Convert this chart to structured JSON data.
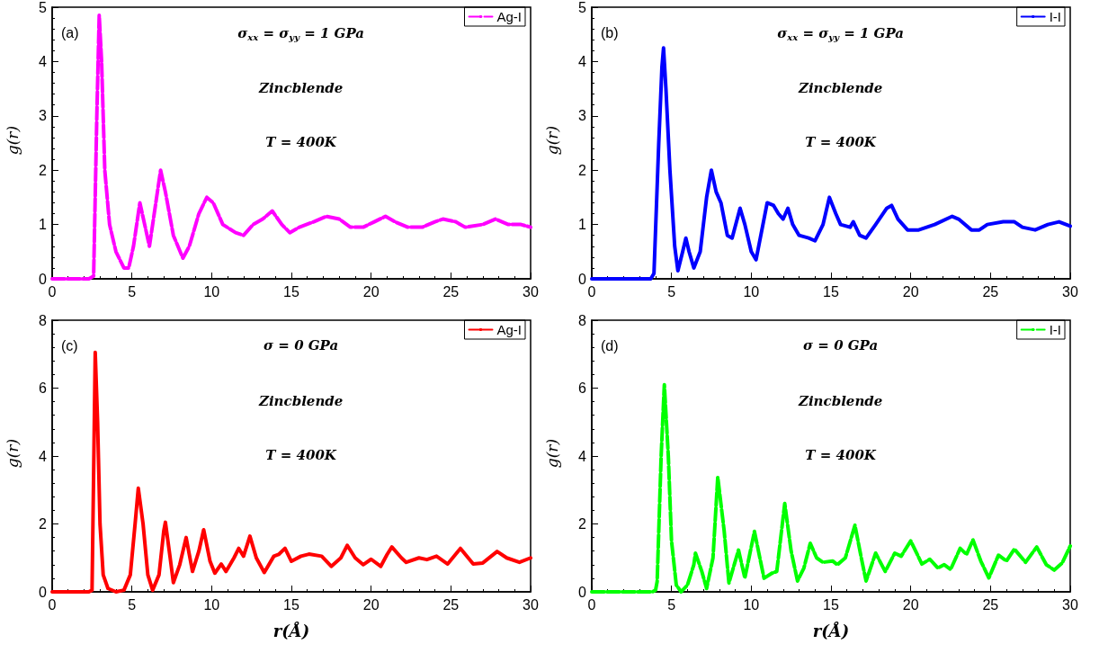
{
  "chart_data": [
    {
      "type": "line",
      "ylabel": "g(r)",
      "legend": "top right",
      "line_style": "dashed",
      "xlim": [
        0,
        30
      ],
      "xticks": [
        0,
        5,
        10,
        15,
        20,
        25,
        30
      ],
      "ylim": [
        0,
        5
      ],
      "yticks": [
        0,
        1,
        2,
        3,
        4,
        5
      ],
      "annotations": [
        "(a)",
        "σ$_{xx}$ = σ$_{yy}$ = 1 GPa",
        "Zincblende",
        "T = 400K"
      ],
      "series": [
        {
          "name": "Ag-I",
          "color": "#ff00ff",
          "x": [
            0,
            2.3,
            2.6,
            2.8,
            2.95,
            3.1,
            3.3,
            3.6,
            4.0,
            4.5,
            4.8,
            5.1,
            5.5,
            5.8,
            6.1,
            6.5,
            6.8,
            7.1,
            7.6,
            8.2,
            8.6,
            9.2,
            9.7,
            10.1,
            10.7,
            11.5,
            12.0,
            12.6,
            13.2,
            13.8,
            14.4,
            14.9,
            15.5,
            16.4,
            17.2,
            18.0,
            18.7,
            19.5,
            20.2,
            20.9,
            21.5,
            22.3,
            23.2,
            24.0,
            24.5,
            25.3,
            25.9,
            27.0,
            27.8,
            28.6,
            29.4,
            30
          ],
          "values": [
            0,
            0,
            0.05,
            3.0,
            4.85,
            4.0,
            2.0,
            1.0,
            0.5,
            0.2,
            0.2,
            0.6,
            1.4,
            1.0,
            0.6,
            1.4,
            2.0,
            1.6,
            0.8,
            0.38,
            0.6,
            1.2,
            1.5,
            1.4,
            1.0,
            0.85,
            0.8,
            1.0,
            1.1,
            1.25,
            1.0,
            0.85,
            0.95,
            1.05,
            1.15,
            1.1,
            0.95,
            0.95,
            1.05,
            1.15,
            1.05,
            0.95,
            0.95,
            1.05,
            1.1,
            1.05,
            0.95,
            1.0,
            1.1,
            1.0,
            1.0,
            0.95
          ]
        }
      ]
    },
    {
      "type": "line",
      "ylabel": "g(r)",
      "legend": "top right",
      "line_style": "solid",
      "xlim": [
        0,
        30
      ],
      "xticks": [
        0,
        5,
        10,
        15,
        20,
        25,
        30
      ],
      "ylim": [
        0,
        5
      ],
      "yticks": [
        0,
        1,
        2,
        3,
        4,
        5
      ],
      "annotations": [
        "(b)",
        "σ$_{xx}$ = σ$_{yy}$ = 1 GPa",
        "Zincblende",
        "T = 400K"
      ],
      "series": [
        {
          "name": "I-I",
          "color": "#0000ff",
          "x": [
            0,
            3.7,
            3.9,
            4.2,
            4.4,
            4.5,
            4.65,
            4.9,
            5.2,
            5.4,
            5.7,
            5.9,
            6.1,
            6.4,
            6.8,
            7.2,
            7.5,
            7.8,
            8.1,
            8.5,
            8.8,
            9.3,
            9.6,
            10.0,
            10.3,
            10.6,
            11.0,
            11.4,
            11.7,
            12.0,
            12.3,
            12.6,
            13.0,
            13.6,
            14.0,
            14.5,
            14.9,
            15.3,
            15.6,
            16.2,
            16.4,
            16.8,
            17.2,
            17.8,
            18.5,
            18.8,
            19.2,
            19.8,
            20.5,
            21.5,
            22.6,
            23.0,
            23.8,
            24.3,
            24.8,
            25.8,
            26.5,
            27.0,
            27.8,
            28.6,
            29.3,
            30
          ],
          "values": [
            0,
            0,
            0.1,
            2.5,
            3.9,
            4.25,
            3.5,
            2.0,
            0.6,
            0.15,
            0.5,
            0.75,
            0.5,
            0.2,
            0.5,
            1.5,
            2.0,
            1.6,
            1.4,
            0.8,
            0.75,
            1.3,
            1.0,
            0.5,
            0.35,
            0.8,
            1.4,
            1.35,
            1.2,
            1.1,
            1.3,
            1.0,
            0.8,
            0.75,
            0.7,
            1.0,
            1.5,
            1.2,
            1.0,
            0.95,
            1.05,
            0.8,
            0.75,
            1.0,
            1.3,
            1.35,
            1.1,
            0.9,
            0.9,
            1.0,
            1.15,
            1.1,
            0.9,
            0.9,
            1.0,
            1.05,
            1.05,
            0.95,
            0.9,
            1.0,
            1.05,
            0.97
          ]
        }
      ]
    },
    {
      "type": "line",
      "xlabel": "r(Å)",
      "ylabel": "g(r)",
      "legend": "top right",
      "line_style": "solid",
      "xlim": [
        0,
        30
      ],
      "xticks": [
        0,
        5,
        10,
        15,
        20,
        25,
        30
      ],
      "ylim": [
        0,
        8
      ],
      "yticks": [
        0,
        2,
        4,
        6,
        8
      ],
      "annotations": [
        "(c)",
        "σ = 0 GPa",
        "Zincblende",
        "T = 400K"
      ],
      "series": [
        {
          "name": "Ag-I",
          "color": "#ff0000",
          "x": [
            0,
            2.3,
            2.5,
            2.6,
            2.7,
            2.85,
            3.0,
            3.2,
            3.5,
            4.0,
            4.5,
            4.9,
            5.2,
            5.4,
            5.7,
            6.0,
            6.3,
            6.7,
            7.0,
            7.1,
            7.4,
            7.6,
            8.0,
            8.4,
            8.8,
            9.2,
            9.5,
            9.9,
            10.2,
            10.6,
            10.9,
            11.4,
            11.7,
            12.0,
            12.4,
            12.8,
            13.3,
            13.9,
            14.2,
            14.6,
            15.0,
            15.6,
            16.1,
            16.9,
            17.5,
            18.1,
            18.5,
            19.0,
            19.5,
            20.0,
            20.6,
            21.0,
            21.3,
            21.9,
            22.2,
            23.0,
            23.5,
            24.1,
            24.8,
            25.6,
            26.4,
            27.0,
            27.9,
            28.5,
            29.3,
            30
          ],
          "values": [
            0,
            0,
            0.05,
            3.5,
            7.05,
            5.0,
            2.0,
            0.5,
            0.1,
            0.0,
            0.05,
            0.5,
            2.0,
            3.05,
            2.0,
            0.5,
            0.05,
            0.5,
            1.8,
            2.05,
            1.0,
            0.27,
            0.8,
            1.6,
            0.6,
            1.2,
            1.83,
            0.9,
            0.55,
            0.82,
            0.6,
            1.0,
            1.28,
            1.05,
            1.64,
            1.0,
            0.57,
            1.05,
            1.1,
            1.28,
            0.9,
            1.05,
            1.11,
            1.05,
            0.75,
            1.0,
            1.37,
            1.0,
            0.8,
            0.96,
            0.75,
            1.1,
            1.32,
            1.0,
            0.87,
            1.0,
            0.95,
            1.05,
            0.82,
            1.28,
            0.82,
            0.85,
            1.19,
            1.0,
            0.87,
            1.0
          ]
        }
      ]
    },
    {
      "type": "line",
      "xlabel": "r(Å)",
      "ylabel": "g(r)",
      "legend": "top right",
      "line_style": "dashed",
      "xlim": [
        0,
        30
      ],
      "xticks": [
        0,
        5,
        10,
        15,
        20,
        25,
        30
      ],
      "ylim": [
        0,
        8
      ],
      "yticks": [
        0,
        2,
        4,
        6,
        8
      ],
      "annotations": [
        "(d)",
        "σ = 0 GPa",
        "Zincblende",
        "T = 400K"
      ],
      "series": [
        {
          "name": "I-I",
          "color": "#00ff00",
          "x": [
            0,
            3.8,
            4.0,
            4.1,
            4.35,
            4.55,
            4.8,
            5.0,
            5.3,
            5.6,
            6.0,
            6.4,
            6.5,
            6.9,
            7.2,
            7.6,
            7.9,
            8.3,
            8.6,
            9.2,
            9.6,
            10.2,
            10.8,
            11.3,
            11.6,
            12.1,
            12.5,
            12.9,
            13.3,
            13.7,
            14.1,
            14.5,
            15.1,
            15.4,
            15.9,
            16.5,
            16.9,
            17.2,
            17.8,
            18.4,
            19.0,
            19.4,
            20.0,
            20.7,
            21.2,
            21.7,
            22.1,
            22.5,
            23.1,
            23.5,
            23.9,
            24.4,
            24.9,
            25.5,
            26.0,
            26.5,
            27.2,
            27.9,
            28.5,
            29.0,
            29.5,
            30
          ],
          "values": [
            0,
            0,
            0.05,
            0.3,
            4.0,
            6.1,
            4.0,
            1.5,
            0.2,
            0.0,
            0.2,
            0.8,
            1.14,
            0.6,
            0.1,
            1.0,
            3.38,
            1.8,
            0.26,
            1.23,
            0.41,
            1.78,
            0.4,
            0.55,
            0.6,
            2.6,
            1.2,
            0.32,
            0.7,
            1.43,
            1.0,
            0.87,
            0.91,
            0.8,
            1.0,
            1.96,
            1.0,
            0.32,
            1.14,
            0.6,
            1.14,
            1.05,
            1.5,
            0.82,
            0.96,
            0.7,
            0.8,
            0.66,
            1.28,
            1.1,
            1.53,
            0.9,
            0.41,
            1.08,
            0.91,
            1.26,
            0.87,
            1.32,
            0.8,
            0.64,
            0.85,
            1.35
          ]
        }
      ]
    }
  ]
}
